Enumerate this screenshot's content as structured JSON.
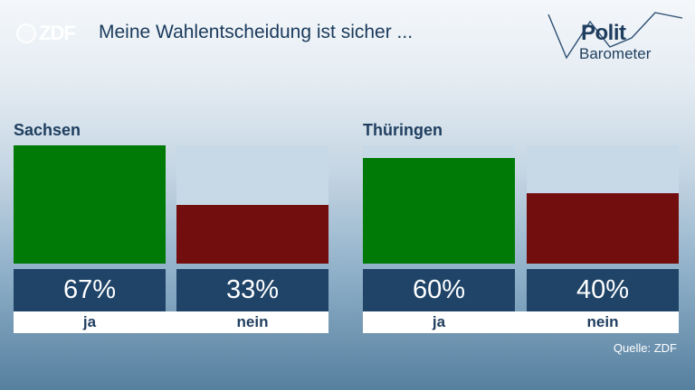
{
  "header": {
    "title": "Meine Wahlentscheidung ist sicher ...",
    "logo_left": "ZDF",
    "logo_right_line1": "Polit",
    "logo_right_line2": "Barometer"
  },
  "chart_data": {
    "type": "bar",
    "title": "Meine Wahlentscheidung ist sicher ...",
    "panels": [
      {
        "name": "Sachsen",
        "categories": [
          "ja",
          "nein"
        ],
        "values": [
          67,
          33
        ],
        "labels": [
          "67%",
          "33%"
        ],
        "colors": [
          "#007a06",
          "#730e0e"
        ]
      },
      {
        "name": "Thüringen",
        "categories": [
          "ja",
          "nein"
        ],
        "values": [
          60,
          40
        ],
        "labels": [
          "60%",
          "40%"
        ],
        "colors": [
          "#007a06",
          "#730e0e"
        ]
      }
    ],
    "ylim": [
      0,
      67
    ],
    "grid": false
  },
  "footer": {
    "source": "Quelle: ZDF"
  }
}
